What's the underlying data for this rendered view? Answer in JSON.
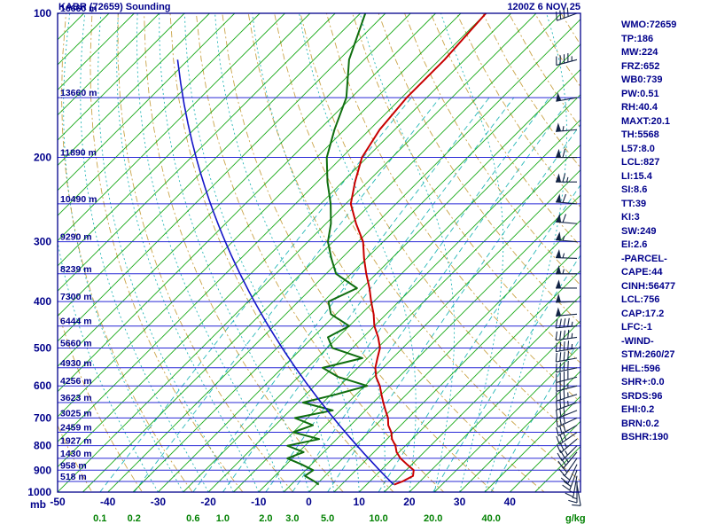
{
  "header": {
    "station": "KABR (72659) Sounding",
    "datetime": "1200Z  6 NOV 25"
  },
  "axes": {
    "pressure_unit": "mb",
    "mixing_unit": "g/kg",
    "pressure_ticks": [
      100,
      200,
      300,
      400,
      500,
      600,
      700,
      800,
      900,
      1000
    ],
    "temp_ticks": [
      -50,
      -40,
      -30,
      -20,
      -10,
      0,
      10,
      20,
      30,
      40
    ]
  },
  "stats": [
    "WMO:72659",
    "TP:186",
    "MW:224",
    "FRZ:652",
    "WB0:739",
    "PW:0.51",
    "RH:40.4",
    "MAXT:20.1",
    "TH:5568",
    "L57:8.0",
    "LCL:827",
    "LI:15.4",
    "SI:8.6",
    "TT:39",
    "KI:3",
    "SW:249",
    "EI:2.6",
    "-PARCEL-",
    "CAPE:44",
    "CINH:56477",
    "LCL:756",
    "CAP:17.2",
    "LFC:-1",
    "-WIND-",
    "STM:260/27",
    "HEL:596",
    "SHR+:0.0",
    "SRDS:96",
    "EHI:0.2",
    "BRN:0.2",
    "BSHR:190"
  ],
  "colors": {
    "text": "#00008b",
    "isobar": "#2929d6",
    "isotherm": "#00a000",
    "dry_adiabat": "#b8860b",
    "moist_adiabat": "#00aaaa",
    "mixing_ratio": "#00aaaa",
    "temperature": "#c80000",
    "dewpoint": "#0f6e0f",
    "parcel": "#1414c8",
    "barb": "#112244",
    "mixing_label": "#008000",
    "border": "#00008b"
  },
  "chart_data": {
    "type": "line",
    "subtype": "skew_t_log_p_sounding",
    "title": "KABR (72659) Sounding",
    "valid": "1200Z 6 NOV 25",
    "x_axis": {
      "label": "Temperature (C)",
      "range": [
        -50,
        40
      ],
      "skew_deg": 45
    },
    "y_axis": {
      "label": "Pressure (mb)",
      "scale": "log",
      "range": [
        1000,
        100
      ],
      "isobar_step_mb": 50
    },
    "isotherm_step_C": 5,
    "dry_adiabats_theta_K": {
      "min": 220,
      "max": 450,
      "step": 10
    },
    "moist_adiabats_T0_C": {
      "min": -30,
      "max": 35,
      "step": 5
    },
    "mixing_ratio_lines_gkg": [
      0.1,
      0.2,
      0.6,
      1.0,
      2.0,
      3.0,
      5.0,
      10.0,
      20.0,
      40.0
    ],
    "heights": [
      [
        100,
        "16660 m"
      ],
      [
        150,
        "13660 m"
      ],
      [
        200,
        "11890 m"
      ],
      [
        250,
        "10490 m"
      ],
      [
        300,
        "9290 m"
      ],
      [
        350,
        "8239 m"
      ],
      [
        400,
        "7300 m"
      ],
      [
        450,
        "6444 m"
      ],
      [
        500,
        "5660 m"
      ],
      [
        550,
        "4930 m"
      ],
      [
        600,
        "4256 m"
      ],
      [
        650,
        "3623 m"
      ],
      [
        700,
        "3025 m"
      ],
      [
        750,
        "2459 m"
      ],
      [
        800,
        "1927 m"
      ],
      [
        850,
        "1430 m"
      ],
      [
        900,
        "958 m"
      ],
      [
        950,
        "518 m"
      ]
    ],
    "series": [
      {
        "name": "Temperature",
        "units": "C vs mb",
        "points": [
          [
            965,
            15.5
          ],
          [
            950,
            16.5
          ],
          [
            925,
            17.5
          ],
          [
            900,
            16.5
          ],
          [
            875,
            14
          ],
          [
            850,
            11.5
          ],
          [
            825,
            9.5
          ],
          [
            800,
            8
          ],
          [
            775,
            6
          ],
          [
            750,
            4.5
          ],
          [
            725,
            2.5
          ],
          [
            700,
            1
          ],
          [
            675,
            -1
          ],
          [
            650,
            -3
          ],
          [
            625,
            -5
          ],
          [
            600,
            -7
          ],
          [
            575,
            -9.5
          ],
          [
            550,
            -11.5
          ],
          [
            525,
            -13
          ],
          [
            500,
            -14.5
          ],
          [
            475,
            -17
          ],
          [
            450,
            -20
          ],
          [
            425,
            -22.5
          ],
          [
            400,
            -25.5
          ],
          [
            375,
            -28.5
          ],
          [
            350,
            -32
          ],
          [
            325,
            -35.5
          ],
          [
            300,
            -39
          ],
          [
            275,
            -44
          ],
          [
            250,
            -49
          ],
          [
            225,
            -52.5
          ],
          [
            200,
            -56
          ],
          [
            175,
            -58
          ],
          [
            150,
            -59
          ],
          [
            125,
            -59
          ],
          [
            100,
            -60
          ]
        ]
      },
      {
        "name": "Dewpoint",
        "units": "C vs mb",
        "points": [
          [
            965,
            0.5
          ],
          [
            950,
            -1
          ],
          [
            925,
            -4
          ],
          [
            900,
            -3.5
          ],
          [
            875,
            -7
          ],
          [
            850,
            -11
          ],
          [
            825,
            -9
          ],
          [
            800,
            -13.5
          ],
          [
            775,
            -8.5
          ],
          [
            750,
            -15
          ],
          [
            725,
            -12.5
          ],
          [
            700,
            -17.5
          ],
          [
            675,
            -11.5
          ],
          [
            650,
            -19
          ],
          [
            625,
            -14
          ],
          [
            600,
            -9.5
          ],
          [
            575,
            -17
          ],
          [
            550,
            -22
          ],
          [
            525,
            -16
          ],
          [
            500,
            -24
          ],
          [
            475,
            -27
          ],
          [
            450,
            -25
          ],
          [
            425,
            -31
          ],
          [
            400,
            -34
          ],
          [
            375,
            -31
          ],
          [
            350,
            -38
          ],
          [
            325,
            -42
          ],
          [
            300,
            -46
          ],
          [
            275,
            -49
          ],
          [
            250,
            -53
          ],
          [
            225,
            -58
          ],
          [
            200,
            -63
          ],
          [
            175,
            -67
          ],
          [
            150,
            -71
          ],
          [
            125,
            -78
          ],
          [
            100,
            -84
          ]
        ]
      },
      {
        "name": "Surface parcel",
        "theta_K": 291.5,
        "p_range": [
          965,
          120
        ]
      }
    ],
    "wind_barbs_kt": [
      [
        965,
        170,
        10
      ],
      [
        950,
        180,
        15
      ],
      [
        925,
        190,
        15
      ],
      [
        900,
        200,
        20
      ],
      [
        875,
        205,
        20
      ],
      [
        850,
        215,
        20
      ],
      [
        825,
        220,
        25
      ],
      [
        800,
        225,
        25
      ],
      [
        775,
        230,
        25
      ],
      [
        750,
        235,
        30
      ],
      [
        725,
        240,
        30
      ],
      [
        700,
        245,
        30
      ],
      [
        675,
        248,
        30
      ],
      [
        650,
        250,
        35
      ],
      [
        625,
        252,
        35
      ],
      [
        600,
        255,
        35
      ],
      [
        575,
        255,
        40
      ],
      [
        550,
        258,
        40
      ],
      [
        525,
        260,
        40
      ],
      [
        500,
        260,
        45
      ],
      [
        475,
        262,
        45
      ],
      [
        450,
        265,
        45
      ],
      [
        425,
        265,
        50
      ],
      [
        400,
        268,
        50
      ],
      [
        375,
        270,
        50
      ],
      [
        350,
        270,
        55
      ],
      [
        325,
        272,
        55
      ],
      [
        300,
        275,
        55
      ],
      [
        275,
        275,
        60
      ],
      [
        250,
        275,
        60
      ],
      [
        225,
        270,
        65
      ],
      [
        200,
        270,
        60
      ],
      [
        175,
        265,
        55
      ],
      [
        150,
        260,
        50
      ],
      [
        125,
        255,
        45
      ],
      [
        100,
        250,
        40
      ]
    ]
  }
}
